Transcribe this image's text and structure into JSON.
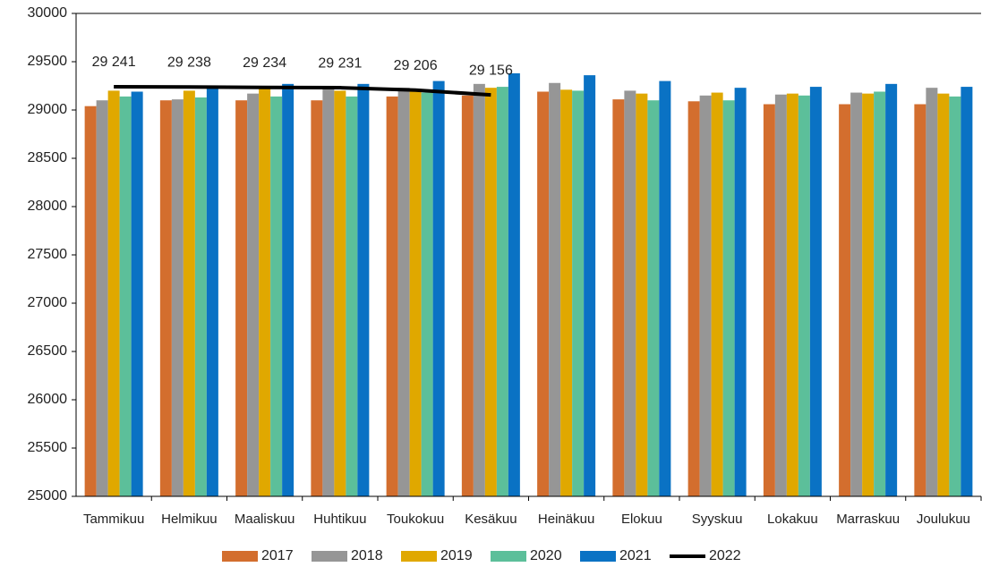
{
  "chart_data": {
    "type": "bar",
    "categories": [
      "Tammikuu",
      "Helmikuu",
      "Maaliskuu",
      "Huhtikuu",
      "Toukokuu",
      "Kesäkuu",
      "Heinäkuu",
      "Elokuu",
      "Syyskuu",
      "Lokakuu",
      "Marraskuu",
      "Joulukuu"
    ],
    "series": [
      {
        "name": "2017",
        "type": "bar",
        "color": "#d36e2e",
        "values": [
          29040,
          29100,
          29100,
          29100,
          29140,
          29150,
          29190,
          29110,
          29090,
          29060,
          29060,
          29060
        ]
      },
      {
        "name": "2018",
        "type": "bar",
        "color": "#969696",
        "values": [
          29100,
          29110,
          29170,
          29230,
          29230,
          29270,
          29280,
          29200,
          29150,
          29160,
          29180,
          29230
        ]
      },
      {
        "name": "2019",
        "type": "bar",
        "color": "#e0a800",
        "values": [
          29200,
          29200,
          29230,
          29200,
          29200,
          29230,
          29210,
          29170,
          29180,
          29170,
          29170,
          29170
        ]
      },
      {
        "name": "2020",
        "type": "bar",
        "color": "#5cbf9a",
        "values": [
          29140,
          29130,
          29140,
          29140,
          29180,
          29240,
          29200,
          29100,
          29100,
          29150,
          29190,
          29140
        ]
      },
      {
        "name": "2021",
        "type": "bar",
        "color": "#0a72c4",
        "values": [
          29190,
          29230,
          29270,
          29270,
          29300,
          29380,
          29360,
          29300,
          29230,
          29240,
          29270,
          29240
        ]
      },
      {
        "name": "2022",
        "type": "line",
        "color": "#000000",
        "values": [
          29241,
          29238,
          29234,
          29231,
          29206,
          29156,
          null,
          null,
          null,
          null,
          null,
          null
        ],
        "value_labels": [
          "29 241",
          "29 238",
          "29 234",
          "29 231",
          "29 206",
          "29 156",
          null,
          null,
          null,
          null,
          null,
          null
        ]
      }
    ],
    "ylim": [
      25000,
      30000
    ],
    "yticks": [
      25000,
      25500,
      26000,
      26500,
      27000,
      27500,
      28000,
      28500,
      29000,
      29500,
      30000
    ],
    "grid": false,
    "legend": "bottom"
  }
}
